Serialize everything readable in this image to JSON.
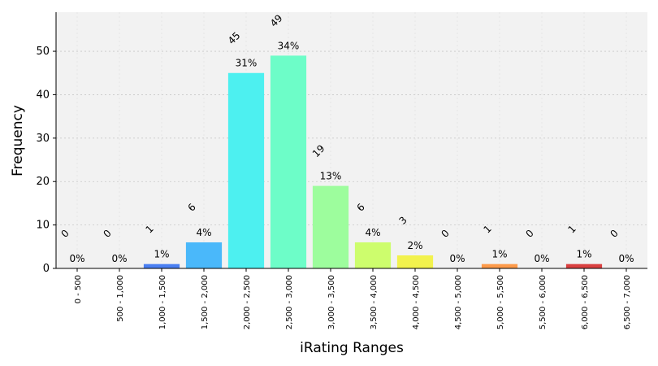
{
  "chart_data": {
    "type": "bar",
    "xlabel": "iRating Ranges",
    "ylabel": "Frequency",
    "ylim": [
      0,
      59
    ],
    "yticks": [
      0,
      10,
      20,
      30,
      40,
      50
    ],
    "grid": true,
    "categories": [
      "0 - 500",
      "500 - 1,000",
      "1,000 - 1,500",
      "1,500 - 2,000",
      "2,000 - 2,500",
      "2,500 - 3,000",
      "3,000 - 3,500",
      "3,500 - 4,000",
      "4,000 - 4,500",
      "4,500 - 5,000",
      "5,000 - 5,500",
      "5,500 - 6,000",
      "6,000 - 6,500",
      "6,500 - 7,000"
    ],
    "values": [
      0,
      0,
      1,
      6,
      45,
      49,
      19,
      6,
      3,
      0,
      1,
      0,
      1,
      0
    ],
    "count_labels": [
      "0",
      "0",
      "1",
      "6",
      "45",
      "49",
      "19",
      "6",
      "3",
      "0",
      "1",
      "0",
      "1",
      "0"
    ],
    "percent_labels": [
      "0%",
      "0%",
      "1%",
      "4%",
      "31%",
      "34%",
      "13%",
      "4%",
      "2%",
      "0%",
      "1%",
      "0%",
      "1%",
      "0%"
    ],
    "colors": [
      "#3a2cbe",
      "#3a4cea",
      "#4a7ff2",
      "#4ab8fa",
      "#4df0f0",
      "#6dfdc8",
      "#9dfd9d",
      "#cdfd6d",
      "#f2f24d",
      "#fdc84a",
      "#fd9a4a",
      "#f2664a",
      "#d94040",
      "#a01010"
    ],
    "count_label_color": "#ff0000",
    "percent_label_color": "#008000"
  }
}
